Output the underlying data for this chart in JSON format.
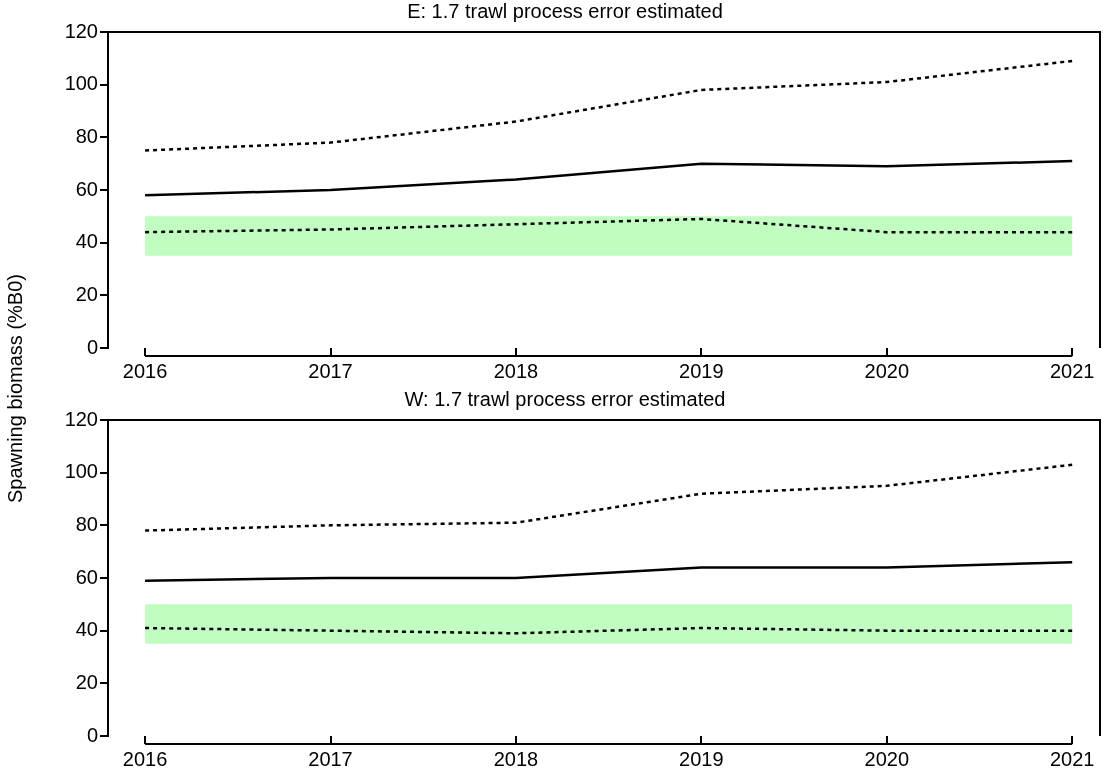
{
  "chart_data": [
    {
      "type": "line",
      "title": "E: 1.7 trawl process error estimated",
      "ylabel": "Spawning biomass (%B0)",
      "x": [
        2016,
        2017,
        2018,
        2019,
        2020,
        2021
      ],
      "xlim": [
        2015.8,
        2021.15
      ],
      "xticks": [
        2016,
        2017,
        2018,
        2019,
        2020,
        2021
      ],
      "ylim": [
        0,
        120
      ],
      "yticks": [
        0,
        20,
        40,
        60,
        80,
        100,
        120
      ],
      "grid": false,
      "legend": false,
      "marker": "none",
      "bands": [
        {
          "axis": "y",
          "from": 35,
          "to": 50,
          "color": "#c1fcc1"
        }
      ],
      "series": [
        {
          "color": "#000000",
          "line_style": "dotted",
          "values": [
            75,
            78,
            86,
            98,
            101,
            109
          ]
        },
        {
          "color": "#000000",
          "line_style": "solid",
          "values": [
            58,
            60,
            64,
            70,
            69,
            71
          ]
        },
        {
          "color": "#000000",
          "line_style": "dotted",
          "values": [
            44,
            45,
            47,
            49,
            44,
            44
          ]
        }
      ]
    },
    {
      "type": "line",
      "title": "W: 1.7 trawl process error estimated",
      "x": [
        2016,
        2017,
        2018,
        2019,
        2020,
        2021
      ],
      "xlim": [
        2015.8,
        2021.15
      ],
      "xticks": [
        2016,
        2017,
        2018,
        2019,
        2020,
        2021
      ],
      "ylim": [
        0,
        120
      ],
      "yticks": [
        0,
        20,
        40,
        60,
        80,
        100,
        120
      ],
      "grid": false,
      "legend": false,
      "marker": "none",
      "bands": [
        {
          "axis": "y",
          "from": 35,
          "to": 50,
          "color": "#c1fcc1"
        }
      ],
      "series": [
        {
          "color": "#000000",
          "line_style": "dotted",
          "values": [
            78,
            80,
            81,
            92,
            95,
            103
          ]
        },
        {
          "color": "#000000",
          "line_style": "solid",
          "values": [
            59,
            60,
            60,
            64,
            64,
            66
          ]
        },
        {
          "color": "#000000",
          "line_style": "dotted",
          "values": [
            41,
            40,
            39,
            41,
            40,
            40
          ]
        }
      ]
    }
  ]
}
